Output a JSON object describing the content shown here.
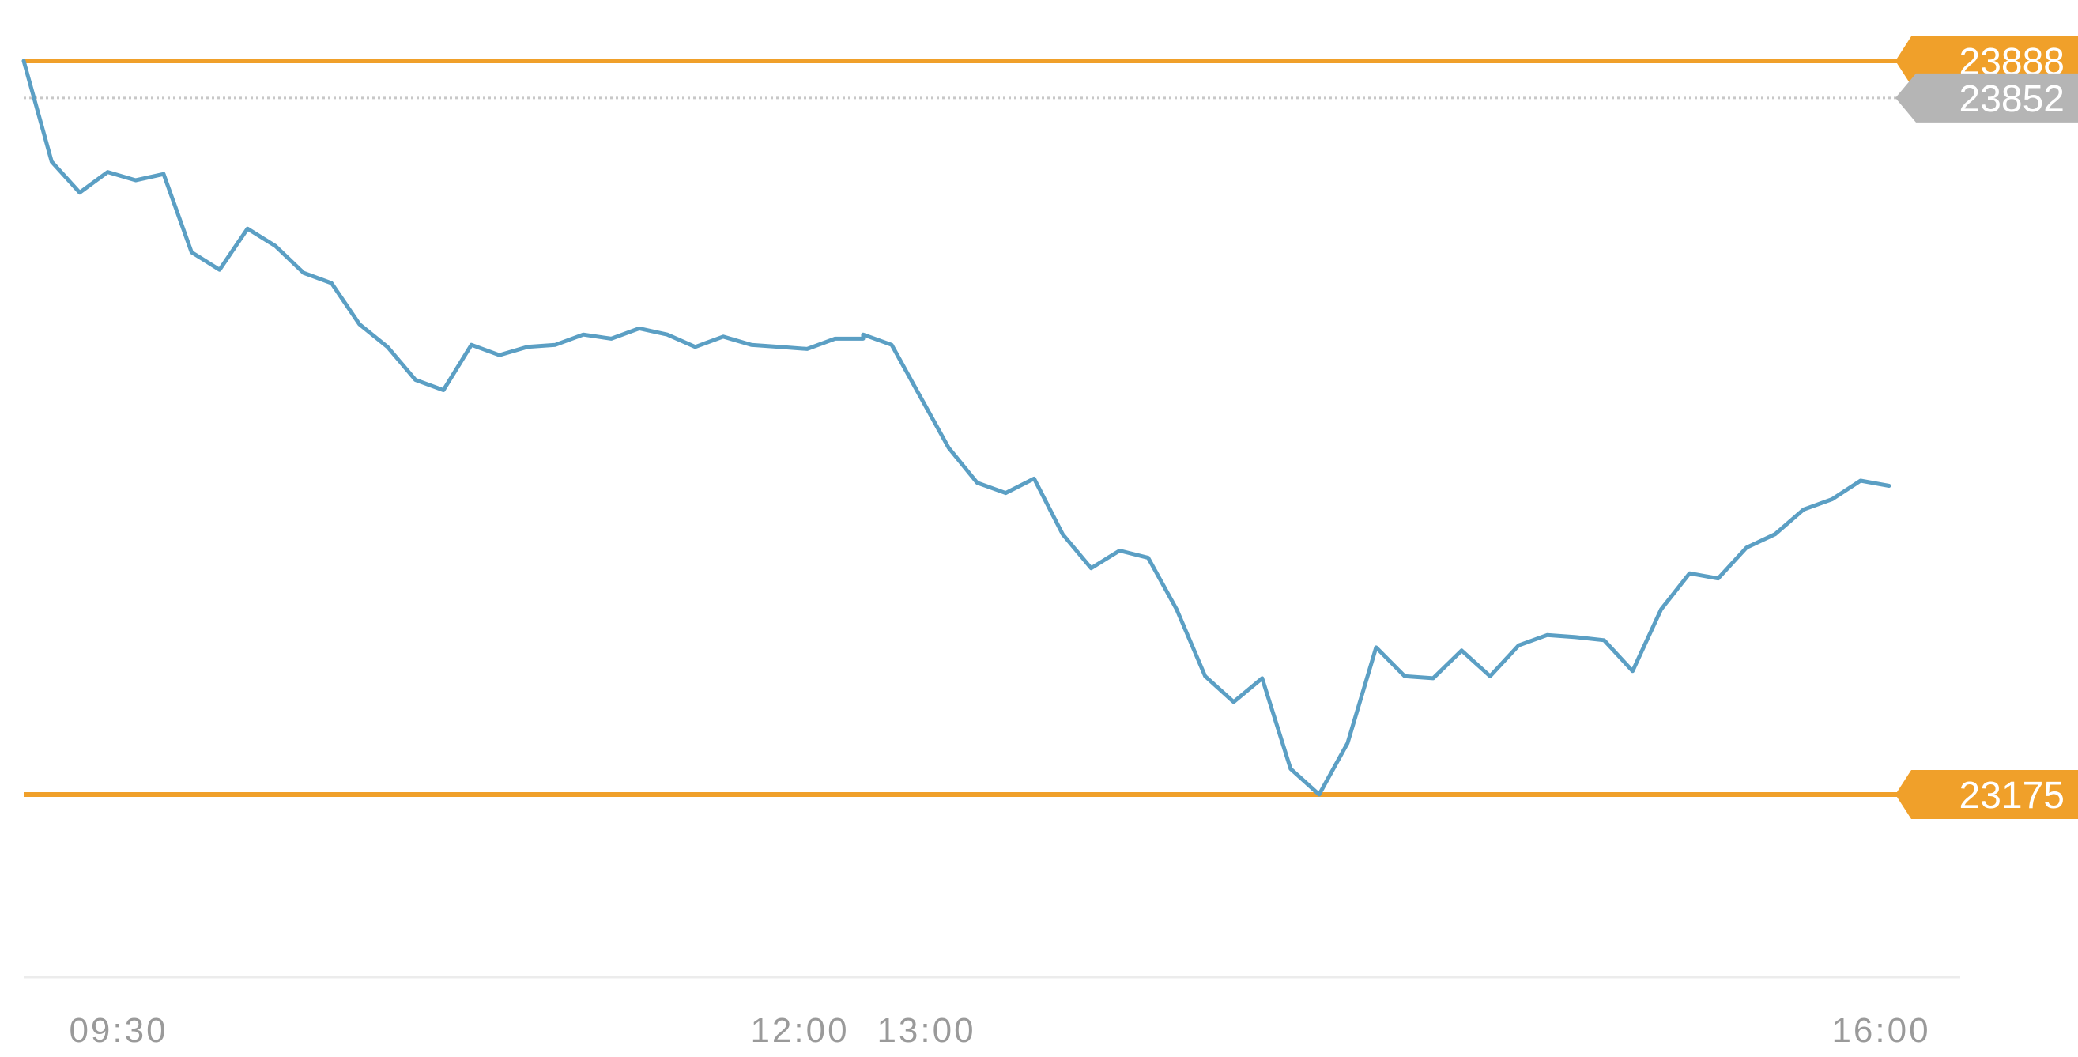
{
  "chart_data": {
    "type": "line",
    "title": "",
    "xlabel": "",
    "ylabel": "",
    "x_tick_labels": [
      "09:30",
      "12:00",
      "13:00",
      "16:00"
    ],
    "y_range": [
      22700,
      23910
    ],
    "reference_lines": [
      {
        "label": "23888",
        "value": 23888,
        "kind": "high"
      },
      {
        "label": "23852",
        "value": 23852,
        "kind": "previous_close"
      },
      {
        "label": "23175",
        "value": 23175,
        "kind": "low"
      }
    ],
    "series": [
      {
        "x": [
          "09:30",
          "09:35",
          "09:40",
          "09:45",
          "09:50",
          "09:55",
          "10:00",
          "10:05",
          "10:10",
          "10:15",
          "10:20",
          "10:25",
          "10:30",
          "10:35",
          "10:40",
          "10:45",
          "10:50",
          "10:55",
          "11:00",
          "11:05",
          "11:10",
          "11:15",
          "11:20",
          "11:25",
          "11:30",
          "11:35",
          "11:40",
          "11:45",
          "11:50",
          "11:55",
          "12:00",
          "13:00",
          "13:05",
          "13:10",
          "13:15",
          "13:20",
          "13:25",
          "13:30",
          "13:35",
          "13:40",
          "13:45",
          "13:50",
          "13:55",
          "14:00",
          "14:05",
          "14:10",
          "14:15",
          "14:20",
          "14:25",
          "14:30",
          "14:35",
          "14:40",
          "14:45",
          "14:50",
          "14:55",
          "15:00",
          "15:05",
          "15:10",
          "15:15",
          "15:20",
          "15:25",
          "15:30",
          "15:35",
          "15:40",
          "15:45",
          "15:50",
          "15:55",
          "16:00"
        ],
        "values": [
          23888,
          23790,
          23760,
          23780,
          23772,
          23778,
          23702,
          23685,
          23725,
          23708,
          23682,
          23672,
          23632,
          23610,
          23578,
          23568,
          23612,
          23602,
          23610,
          23612,
          23622,
          23618,
          23628,
          23622,
          23610,
          23620,
          23612,
          23610,
          23608,
          23618,
          23618,
          23622,
          23612,
          23562,
          23512,
          23478,
          23468,
          23482,
          23428,
          23395,
          23412,
          23405,
          23355,
          23290,
          23265,
          23288,
          23200,
          23175,
          23225,
          23318,
          23290,
          23288,
          23315,
          23290,
          23320,
          23330,
          23328,
          23325,
          23295,
          23355,
          23390,
          23385,
          23415,
          23428,
          23452,
          23462,
          23480,
          23475
        ]
      }
    ]
  }
}
